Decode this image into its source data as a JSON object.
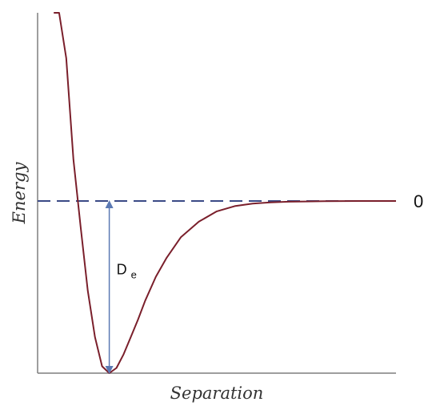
{
  "chart_data": {
    "type": "line",
    "title": "",
    "xlabel": "Separation",
    "ylabel": "Energy",
    "xlim": [
      0,
      10
    ],
    "ylim": [
      -1.0,
      1.0
    ],
    "series": [
      {
        "values_x": [
          0.45,
          0.6,
          0.8,
          1.0,
          1.2,
          1.4,
          1.6,
          1.8,
          2.0,
          2.2,
          2.4,
          2.6,
          2.8,
          3.0,
          3.3,
          3.6,
          4.0,
          4.5,
          5.0,
          5.5,
          6.0,
          6.5,
          7.0,
          8.0,
          9.0,
          10.0
        ],
        "values_y": [
          2.3,
          1.6,
          0.83,
          0.24,
          -0.15,
          -0.52,
          -0.79,
          -0.96,
          -1.0,
          -0.97,
          -0.89,
          -0.79,
          -0.69,
          -0.58,
          -0.44,
          -0.33,
          -0.21,
          -0.12,
          -0.06,
          -0.03,
          -0.015,
          -0.008,
          -0.004,
          -0.001,
          0.0,
          0.0
        ],
        "color": "#7a1f2b"
      }
    ],
    "reference_line": {
      "y": 0,
      "label": "0",
      "style": "dashed",
      "color": "#3b4a86"
    },
    "annotation": {
      "label_main": "D",
      "label_sub": "e",
      "x": 2.0,
      "y_from": -1.0,
      "y_to": 0.0,
      "color": "#5b79b3"
    },
    "grid": false,
    "legend": "none"
  }
}
